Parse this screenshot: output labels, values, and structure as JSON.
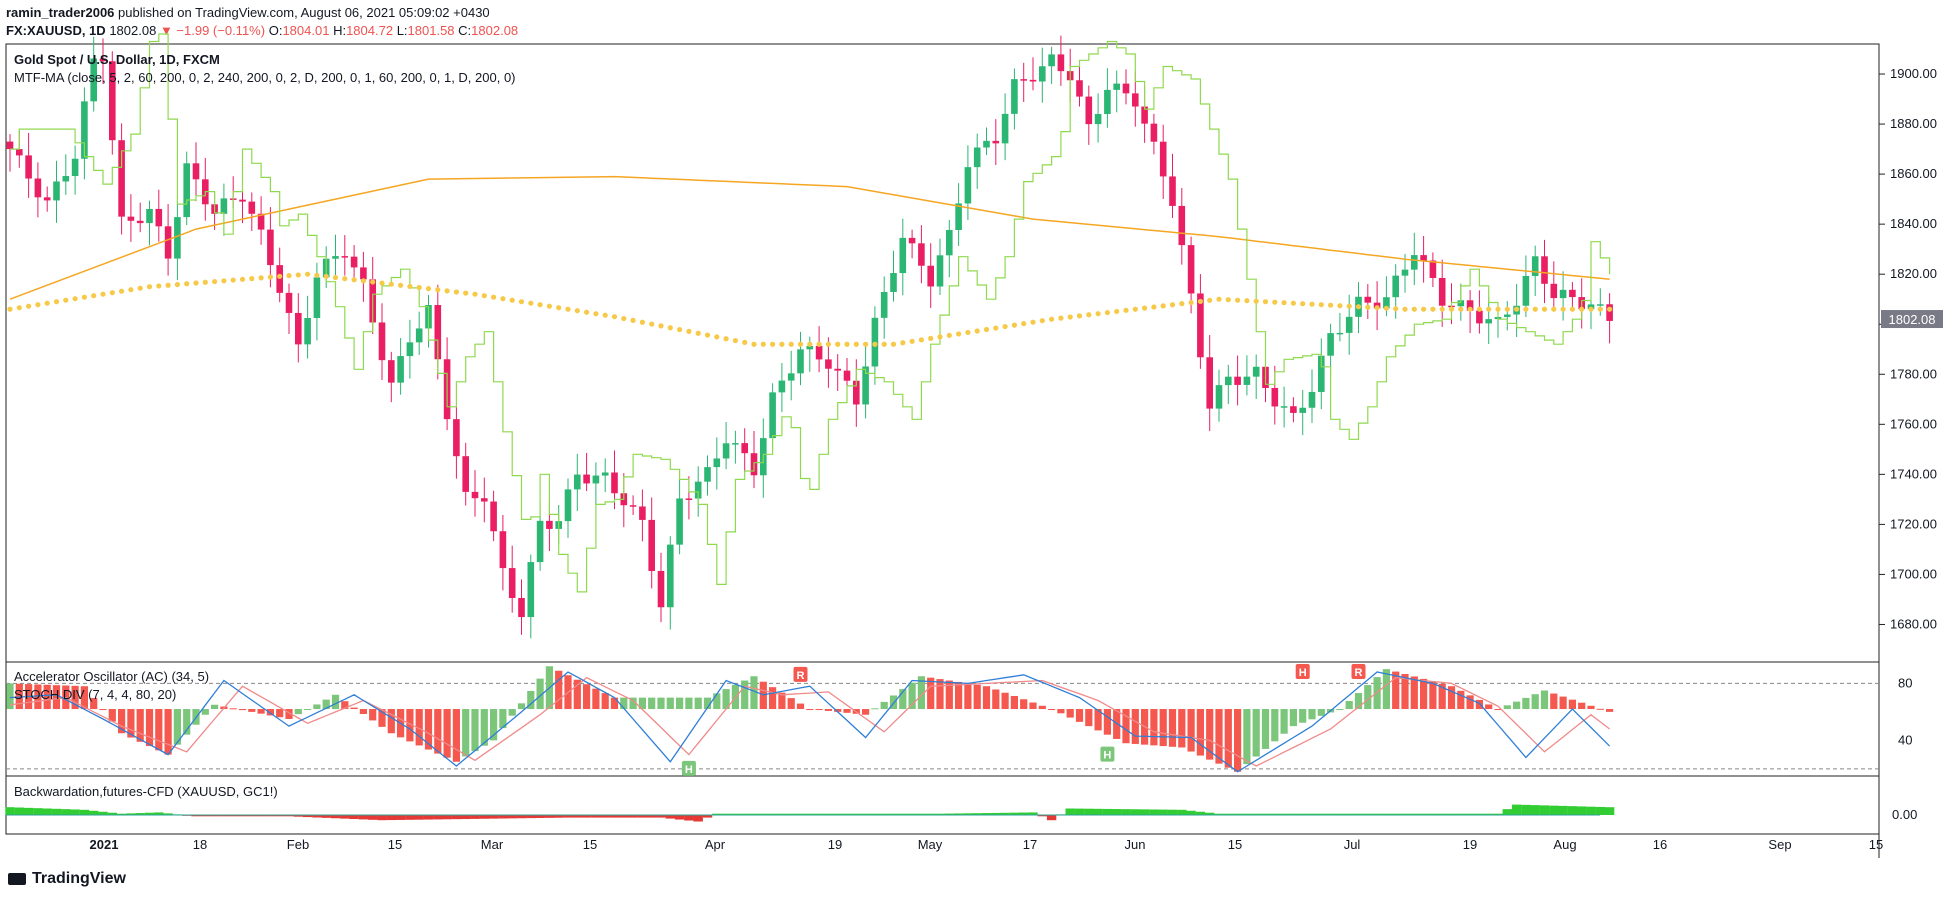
{
  "header": {
    "author": "ramin_trader2006",
    "published_text": " published on TradingView.com, August 06, 2021 05:09:02 +0430",
    "symbol": "FX:XAUUSD, 1D",
    "last": "1802.08",
    "change": "▼ −1.99 (−0.11%)",
    "o_label": "O:",
    "o_val": "1804.01",
    "h_label": "H:",
    "h_val": "1804.72",
    "l_label": "L:",
    "l_val": "1801.58",
    "c_label": "C:",
    "c_val": "1802.08"
  },
  "footer": {
    "brand": "TradingView"
  },
  "colors": {
    "up": "#26a69a",
    "candle_up": "#2bb673",
    "candle_down": "#e91e63",
    "ma_orange": "#f5a623",
    "ma_dots": "#f7c948",
    "ma_green": "#8fd94f",
    "osc_up": "#7bc67b",
    "osc_down": "#f4584f",
    "stoch_k": "#2f7fd6",
    "stoch_d": "#f08a8a",
    "backwardation": "#32cd32",
    "contango": "#e53935"
  },
  "chart_data": [
    {
      "type": "candlestick",
      "title": "Gold Spot / U.S. Dollar, 1D, FXCM",
      "indicator_label": "MTF-MA (close, 5, 2, 60, 200, 0, 2, 240, 200, 0, 2, D, 200, 0, 1, 60, 200, 0, 1, D, 200, 0)",
      "ylim": [
        1665,
        1912
      ],
      "y_ticks": [
        1680,
        1700,
        1720,
        1740,
        1760,
        1780,
        1800,
        1820,
        1840,
        1860,
        1880,
        1900
      ],
      "y_tick_labels": [
        "1680.00",
        "1700.00",
        "1720.00",
        "1740.00",
        "1760.00",
        "1780.00",
        "1800.00",
        "1820.00",
        "1840.00",
        "1860.00",
        "1880.00",
        "1900.00"
      ],
      "last_price_label": "1802.08",
      "last_price": 1802.08,
      "x_tick_labels": [
        "2021",
        "18",
        "Feb",
        "15",
        "Mar",
        "15",
        "Apr",
        "19",
        "May",
        "17",
        "Jun",
        "15",
        "Jul",
        "19",
        "Aug",
        "16",
        "Sep",
        "15"
      ],
      "close_points": [
        {
          "x": 0,
          "y": 1870
        },
        {
          "x": 4,
          "y": 1848
        },
        {
          "x": 7,
          "y": 1868
        },
        {
          "x": 9,
          "y": 1905
        },
        {
          "x": 10,
          "y": 1908
        },
        {
          "x": 12,
          "y": 1840
        },
        {
          "x": 15,
          "y": 1845
        },
        {
          "x": 17,
          "y": 1828
        },
        {
          "x": 19,
          "y": 1862
        },
        {
          "x": 22,
          "y": 1845
        },
        {
          "x": 25,
          "y": 1852
        },
        {
          "x": 27,
          "y": 1835
        },
        {
          "x": 29,
          "y": 1815
        },
        {
          "x": 31,
          "y": 1790
        },
        {
          "x": 33,
          "y": 1820
        },
        {
          "x": 36,
          "y": 1830
        },
        {
          "x": 38,
          "y": 1815
        },
        {
          "x": 41,
          "y": 1775
        },
        {
          "x": 43,
          "y": 1795
        },
        {
          "x": 45,
          "y": 1805
        },
        {
          "x": 47,
          "y": 1765
        },
        {
          "x": 49,
          "y": 1730
        },
        {
          "x": 51,
          "y": 1732
        },
        {
          "x": 53,
          "y": 1700
        },
        {
          "x": 55,
          "y": 1685
        },
        {
          "x": 57,
          "y": 1720
        },
        {
          "x": 59,
          "y": 1722
        },
        {
          "x": 61,
          "y": 1740
        },
        {
          "x": 64,
          "y": 1738
        },
        {
          "x": 66,
          "y": 1730
        },
        {
          "x": 68,
          "y": 1720
        },
        {
          "x": 70,
          "y": 1688
        },
        {
          "x": 72,
          "y": 1730
        },
        {
          "x": 75,
          "y": 1740
        },
        {
          "x": 77,
          "y": 1755
        },
        {
          "x": 80,
          "y": 1742
        },
        {
          "x": 82,
          "y": 1770
        },
        {
          "x": 85,
          "y": 1790
        },
        {
          "x": 88,
          "y": 1785
        },
        {
          "x": 91,
          "y": 1770
        },
        {
          "x": 93,
          "y": 1800
        },
        {
          "x": 96,
          "y": 1835
        },
        {
          "x": 99,
          "y": 1818
        },
        {
          "x": 101,
          "y": 1835
        },
        {
          "x": 103,
          "y": 1865
        },
        {
          "x": 106,
          "y": 1875
        },
        {
          "x": 108,
          "y": 1895
        },
        {
          "x": 110,
          "y": 1900
        },
        {
          "x": 112,
          "y": 1905
        },
        {
          "x": 114,
          "y": 1900
        },
        {
          "x": 116,
          "y": 1878
        },
        {
          "x": 118,
          "y": 1895
        },
        {
          "x": 121,
          "y": 1890
        },
        {
          "x": 123,
          "y": 1870
        },
        {
          "x": 125,
          "y": 1850
        },
        {
          "x": 127,
          "y": 1810
        },
        {
          "x": 129,
          "y": 1768
        },
        {
          "x": 131,
          "y": 1778
        },
        {
          "x": 134,
          "y": 1780
        },
        {
          "x": 136,
          "y": 1770
        },
        {
          "x": 138,
          "y": 1762
        },
        {
          "x": 140,
          "y": 1775
        },
        {
          "x": 142,
          "y": 1795
        },
        {
          "x": 145,
          "y": 1808
        },
        {
          "x": 148,
          "y": 1810
        },
        {
          "x": 151,
          "y": 1830
        },
        {
          "x": 154,
          "y": 1810
        },
        {
          "x": 157,
          "y": 1805
        },
        {
          "x": 160,
          "y": 1800
        },
        {
          "x": 162,
          "y": 1810
        },
        {
          "x": 164,
          "y": 1825
        },
        {
          "x": 166,
          "y": 1812
        },
        {
          "x": 168,
          "y": 1810
        },
        {
          "x": 170,
          "y": 1808
        },
        {
          "x": 172,
          "y": 1802
        }
      ],
      "series": [
        {
          "name": "MA orange",
          "values": [
            {
              "x": 0,
              "y": 1810
            },
            {
              "x": 20,
              "y": 1838
            },
            {
              "x": 45,
              "y": 1858
            },
            {
              "x": 65,
              "y": 1859
            },
            {
              "x": 90,
              "y": 1855
            },
            {
              "x": 110,
              "y": 1842
            },
            {
              "x": 130,
              "y": 1835
            },
            {
              "x": 150,
              "y": 1826
            },
            {
              "x": 172,
              "y": 1818
            }
          ]
        },
        {
          "name": "MA dots",
          "values": [
            {
              "x": 0,
              "y": 1806
            },
            {
              "x": 15,
              "y": 1815
            },
            {
              "x": 32,
              "y": 1820
            },
            {
              "x": 50,
              "y": 1812
            },
            {
              "x": 65,
              "y": 1803
            },
            {
              "x": 80,
              "y": 1792
            },
            {
              "x": 95,
              "y": 1792
            },
            {
              "x": 112,
              "y": 1802
            },
            {
              "x": 130,
              "y": 1810
            },
            {
              "x": 150,
              "y": 1806
            },
            {
              "x": 172,
              "y": 1806
            }
          ]
        }
      ]
    },
    {
      "type": "bar",
      "title": "Accelerator Oscillator (AC) (34, 5)",
      "indicator_label": "STOCH DIV (7, 4, 4, 80, 20)",
      "ylim": [
        15,
        95
      ],
      "y_ticks": [
        40,
        80
      ],
      "y_tick_labels": [
        "40",
        "80"
      ],
      "levels": [
        80,
        20
      ],
      "markers": [
        "H",
        "R",
        "H",
        "H",
        "R"
      ],
      "histogram_points": [
        {
          "x": 0,
          "y": 80
        },
        {
          "x": 8,
          "y": 78
        },
        {
          "x": 12,
          "y": 45
        },
        {
          "x": 17,
          "y": 30
        },
        {
          "x": 22,
          "y": 65
        },
        {
          "x": 30,
          "y": 55
        },
        {
          "x": 35,
          "y": 72
        },
        {
          "x": 41,
          "y": 45
        },
        {
          "x": 48,
          "y": 25
        },
        {
          "x": 52,
          "y": 40
        },
        {
          "x": 58,
          "y": 92
        },
        {
          "x": 65,
          "y": 70
        },
        {
          "x": 75,
          "y": 70
        },
        {
          "x": 80,
          "y": 85
        },
        {
          "x": 86,
          "y": 62
        },
        {
          "x": 92,
          "y": 58
        },
        {
          "x": 98,
          "y": 85
        },
        {
          "x": 105,
          "y": 78
        },
        {
          "x": 112,
          "y": 62
        },
        {
          "x": 120,
          "y": 38
        },
        {
          "x": 126,
          "y": 35
        },
        {
          "x": 132,
          "y": 18
        },
        {
          "x": 138,
          "y": 50
        },
        {
          "x": 143,
          "y": 62
        },
        {
          "x": 148,
          "y": 90
        },
        {
          "x": 155,
          "y": 78
        },
        {
          "x": 160,
          "y": 62
        },
        {
          "x": 165,
          "y": 75
        },
        {
          "x": 172,
          "y": 60
        }
      ],
      "stoch_k": [
        {
          "x": 0,
          "y": 70
        },
        {
          "x": 5,
          "y": 72
        },
        {
          "x": 10,
          "y": 55
        },
        {
          "x": 17,
          "y": 30
        },
        {
          "x": 23,
          "y": 82
        },
        {
          "x": 30,
          "y": 50
        },
        {
          "x": 37,
          "y": 72
        },
        {
          "x": 43,
          "y": 48
        },
        {
          "x": 48,
          "y": 22
        },
        {
          "x": 55,
          "y": 60
        },
        {
          "x": 60,
          "y": 88
        },
        {
          "x": 65,
          "y": 70
        },
        {
          "x": 71,
          "y": 25
        },
        {
          "x": 77,
          "y": 82
        },
        {
          "x": 81,
          "y": 72
        },
        {
          "x": 86,
          "y": 78
        },
        {
          "x": 92,
          "y": 42
        },
        {
          "x": 97,
          "y": 82
        },
        {
          "x": 103,
          "y": 80
        },
        {
          "x": 109,
          "y": 86
        },
        {
          "x": 115,
          "y": 70
        },
        {
          "x": 121,
          "y": 43
        },
        {
          "x": 127,
          "y": 42
        },
        {
          "x": 132,
          "y": 18
        },
        {
          "x": 140,
          "y": 50
        },
        {
          "x": 147,
          "y": 88
        },
        {
          "x": 153,
          "y": 80
        },
        {
          "x": 158,
          "y": 66
        },
        {
          "x": 163,
          "y": 28
        },
        {
          "x": 168,
          "y": 62
        },
        {
          "x": 172,
          "y": 36
        }
      ],
      "stoch_d": [
        {
          "x": 0,
          "y": 65
        },
        {
          "x": 6,
          "y": 70
        },
        {
          "x": 12,
          "y": 50
        },
        {
          "x": 19,
          "y": 32
        },
        {
          "x": 25,
          "y": 78
        },
        {
          "x": 32,
          "y": 52
        },
        {
          "x": 38,
          "y": 68
        },
        {
          "x": 45,
          "y": 45
        },
        {
          "x": 50,
          "y": 26
        },
        {
          "x": 57,
          "y": 58
        },
        {
          "x": 62,
          "y": 84
        },
        {
          "x": 67,
          "y": 68
        },
        {
          "x": 73,
          "y": 30
        },
        {
          "x": 79,
          "y": 78
        },
        {
          "x": 83,
          "y": 72
        },
        {
          "x": 88,
          "y": 74
        },
        {
          "x": 94,
          "y": 46
        },
        {
          "x": 99,
          "y": 78
        },
        {
          "x": 105,
          "y": 80
        },
        {
          "x": 111,
          "y": 82
        },
        {
          "x": 117,
          "y": 68
        },
        {
          "x": 123,
          "y": 46
        },
        {
          "x": 129,
          "y": 40
        },
        {
          "x": 134,
          "y": 22
        },
        {
          "x": 142,
          "y": 48
        },
        {
          "x": 149,
          "y": 84
        },
        {
          "x": 155,
          "y": 80
        },
        {
          "x": 160,
          "y": 64
        },
        {
          "x": 165,
          "y": 32
        },
        {
          "x": 170,
          "y": 58
        },
        {
          "x": 172,
          "y": 48
        }
      ]
    },
    {
      "type": "area",
      "title": "Backwardation,futures-CFD (XAUUSD, GC1!)",
      "ylim": [
        -1,
        1
      ],
      "y_ticks": [
        0
      ],
      "y_tick_labels": [
        "0.00"
      ],
      "values": [
        {
          "x": 0,
          "y": 0.3
        },
        {
          "x": 8,
          "y": 0.2
        },
        {
          "x": 12,
          "y": 0.05
        },
        {
          "x": 16,
          "y": 0.1
        },
        {
          "x": 20,
          "y": -0.05
        },
        {
          "x": 30,
          "y": -0.05
        },
        {
          "x": 40,
          "y": -0.2
        },
        {
          "x": 50,
          "y": -0.15
        },
        {
          "x": 60,
          "y": -0.1
        },
        {
          "x": 70,
          "y": -0.1
        },
        {
          "x": 74,
          "y": -0.25
        },
        {
          "x": 76,
          "y": 0.05
        },
        {
          "x": 90,
          "y": 0.05
        },
        {
          "x": 100,
          "y": 0.05
        },
        {
          "x": 110,
          "y": 0.1
        },
        {
          "x": 112,
          "y": -0.2
        },
        {
          "x": 114,
          "y": 0.25
        },
        {
          "x": 126,
          "y": 0.2
        },
        {
          "x": 130,
          "y": 0.05
        },
        {
          "x": 150,
          "y": 0.05
        },
        {
          "x": 160,
          "y": 0.05
        },
        {
          "x": 162,
          "y": 0.4
        },
        {
          "x": 172,
          "y": 0.3
        }
      ]
    }
  ]
}
